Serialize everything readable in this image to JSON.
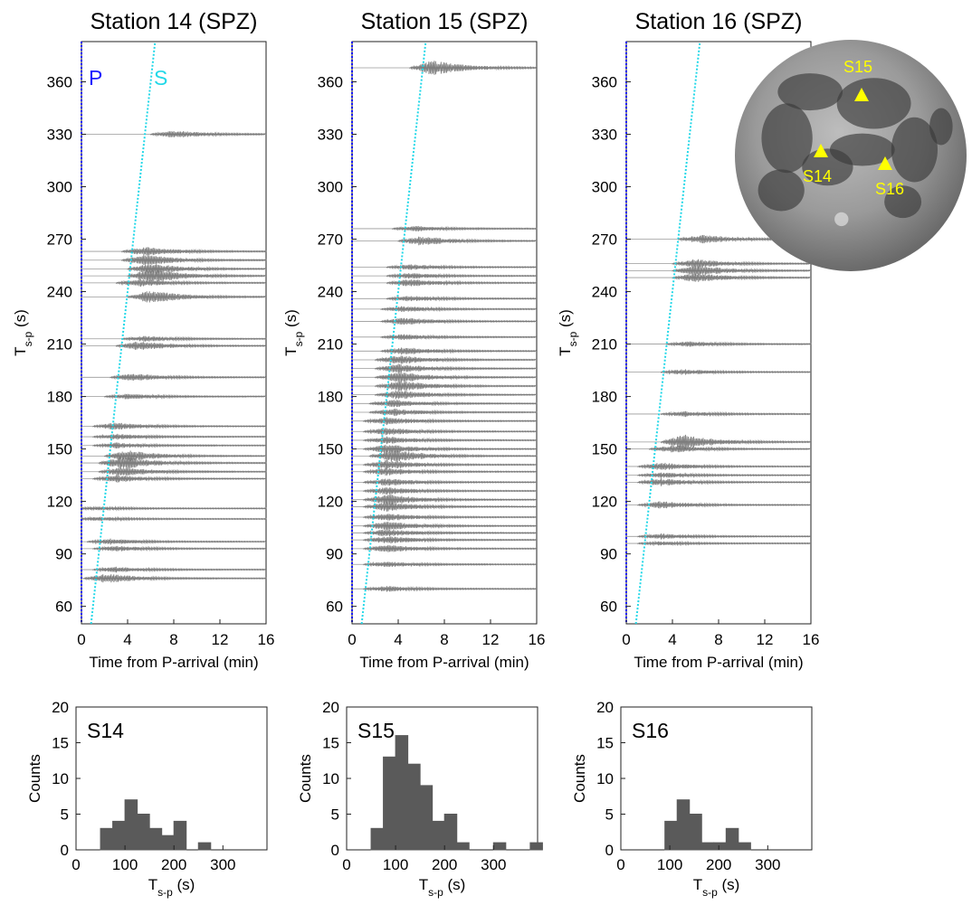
{
  "moon": {
    "labels": [
      {
        "text": "S15",
        "lon": 0.3,
        "lat": 0.48
      },
      {
        "text": "S14",
        "lon": -0.26,
        "lat": 0.09
      },
      {
        "text": "S16",
        "lon": 0.42,
        "lat": 0.02
      }
    ]
  },
  "chart_data": [
    {
      "type": "scatter",
      "title": "Station 14 (SPZ)",
      "xlabel": "Time from P-arrival (min)",
      "ylabel_main": "T",
      "ylabel_sub": "s-p",
      "ylabel_unit": " (s)",
      "xlim": [
        0,
        16
      ],
      "ylim": [
        50,
        383
      ],
      "xticks": [
        0,
        4,
        8,
        12,
        16
      ],
      "yticks": [
        60,
        90,
        120,
        150,
        180,
        210,
        240,
        270,
        300,
        330,
        360
      ],
      "p_label": "P",
      "s_label": "S",
      "p_color": "#1a1aff",
      "s_color": "#22d8e8",
      "traces": [
        {
          "tsp": 76,
          "peak": 2.2,
          "amp": 5
        },
        {
          "tsp": 81,
          "peak": 3.0,
          "amp": 3
        },
        {
          "tsp": 93,
          "peak": 3.0,
          "amp": 3
        },
        {
          "tsp": 97,
          "peak": 2.5,
          "amp": 3
        },
        {
          "tsp": 110,
          "peak": 1.5,
          "amp": 2
        },
        {
          "tsp": 116,
          "peak": 1.5,
          "amp": 2
        },
        {
          "tsp": 133,
          "peak": 3.0,
          "amp": 4
        },
        {
          "tsp": 137,
          "peak": 3.5,
          "amp": 5
        },
        {
          "tsp": 142,
          "peak": 3.5,
          "amp": 7
        },
        {
          "tsp": 146,
          "peak": 4.0,
          "amp": 6
        },
        {
          "tsp": 152,
          "peak": 3.0,
          "amp": 3
        },
        {
          "tsp": 157,
          "peak": 3.0,
          "amp": 3
        },
        {
          "tsp": 163,
          "peak": 3.0,
          "amp": 4
        },
        {
          "tsp": 180,
          "peak": 4.0,
          "amp": 3
        },
        {
          "tsp": 191,
          "peak": 4.5,
          "amp": 4
        },
        {
          "tsp": 209,
          "peak": 5.0,
          "amp": 5
        },
        {
          "tsp": 213,
          "peak": 5.5,
          "amp": 3
        },
        {
          "tsp": 237,
          "peak": 6.0,
          "amp": 7
        },
        {
          "tsp": 245,
          "peak": 5.0,
          "amp": 4
        },
        {
          "tsp": 249,
          "peak": 6.0,
          "amp": 8
        },
        {
          "tsp": 253,
          "peak": 6.0,
          "amp": 6
        },
        {
          "tsp": 258,
          "peak": 5.5,
          "amp": 6
        },
        {
          "tsp": 263,
          "peak": 5.5,
          "amp": 5
        },
        {
          "tsp": 330,
          "peak": 8.0,
          "amp": 4
        }
      ]
    },
    {
      "type": "scatter",
      "title": "Station 15 (SPZ)",
      "xlabel": "Time from P-arrival (min)",
      "ylabel_main": "T",
      "ylabel_sub": "s-p",
      "ylabel_unit": " (s)",
      "xlim": [
        0,
        16
      ],
      "ylim": [
        50,
        383
      ],
      "xticks": [
        0,
        4,
        8,
        12,
        16
      ],
      "yticks": [
        60,
        90,
        120,
        150,
        180,
        210,
        240,
        270,
        300,
        330,
        360
      ],
      "p_color": "#1a1aff",
      "s_color": "#22d8e8",
      "traces": [
        {
          "tsp": 70,
          "peak": 3.0,
          "amp": 3
        },
        {
          "tsp": 84,
          "peak": 3.0,
          "amp": 3
        },
        {
          "tsp": 93,
          "peak": 3.0,
          "amp": 4
        },
        {
          "tsp": 98,
          "peak": 3.0,
          "amp": 4
        },
        {
          "tsp": 102,
          "peak": 3.0,
          "amp": 4
        },
        {
          "tsp": 106,
          "peak": 3.0,
          "amp": 5
        },
        {
          "tsp": 111,
          "peak": 3.0,
          "amp": 4
        },
        {
          "tsp": 117,
          "peak": 3.0,
          "amp": 5
        },
        {
          "tsp": 121,
          "peak": 3.0,
          "amp": 6
        },
        {
          "tsp": 126,
          "peak": 3.0,
          "amp": 4
        },
        {
          "tsp": 131,
          "peak": 3.0,
          "amp": 4
        },
        {
          "tsp": 137,
          "peak": 3.0,
          "amp": 4
        },
        {
          "tsp": 141,
          "peak": 3.0,
          "amp": 5
        },
        {
          "tsp": 146,
          "peak": 3.5,
          "amp": 7
        },
        {
          "tsp": 150,
          "peak": 3.0,
          "amp": 5
        },
        {
          "tsp": 155,
          "peak": 3.0,
          "amp": 4
        },
        {
          "tsp": 160,
          "peak": 3.0,
          "amp": 4
        },
        {
          "tsp": 166,
          "peak": 3.0,
          "amp": 4
        },
        {
          "tsp": 171,
          "peak": 3.5,
          "amp": 4
        },
        {
          "tsp": 176,
          "peak": 3.5,
          "amp": 4
        },
        {
          "tsp": 181,
          "peak": 4.0,
          "amp": 5
        },
        {
          "tsp": 186,
          "peak": 4.0,
          "amp": 6
        },
        {
          "tsp": 191,
          "peak": 4.0,
          "amp": 6
        },
        {
          "tsp": 196,
          "peak": 4.0,
          "amp": 5
        },
        {
          "tsp": 201,
          "peak": 4.0,
          "amp": 5
        },
        {
          "tsp": 206,
          "peak": 4.5,
          "amp": 4
        },
        {
          "tsp": 214,
          "peak": 4.5,
          "amp": 3
        },
        {
          "tsp": 223,
          "peak": 4.5,
          "amp": 4
        },
        {
          "tsp": 230,
          "peak": 4.5,
          "amp": 3
        },
        {
          "tsp": 236,
          "peak": 5.0,
          "amp": 3
        },
        {
          "tsp": 245,
          "peak": 5.0,
          "amp": 4
        },
        {
          "tsp": 249,
          "peak": 5.0,
          "amp": 3
        },
        {
          "tsp": 254,
          "peak": 5.0,
          "amp": 3
        },
        {
          "tsp": 269,
          "peak": 6.0,
          "amp": 5
        },
        {
          "tsp": 276,
          "peak": 5.5,
          "amp": 3
        },
        {
          "tsp": 368,
          "peak": 7.0,
          "amp": 8
        }
      ]
    },
    {
      "type": "scatter",
      "title": "Station 16 (SPZ)",
      "xlabel": "Time from P-arrival (min)",
      "ylabel_main": "T",
      "ylabel_sub": "s-p",
      "ylabel_unit": " (s)",
      "xlim": [
        0,
        16
      ],
      "ylim": [
        50,
        383
      ],
      "xticks": [
        0,
        4,
        8,
        12,
        16
      ],
      "yticks": [
        60,
        90,
        120,
        150,
        180,
        210,
        240,
        270,
        300,
        330,
        360
      ],
      "p_color": "#1a1aff",
      "s_color": "#22d8e8",
      "traces": [
        {
          "tsp": 96,
          "peak": 3.0,
          "amp": 2
        },
        {
          "tsp": 100,
          "peak": 3.0,
          "amp": 3
        },
        {
          "tsp": 118,
          "peak": 3.0,
          "amp": 4
        },
        {
          "tsp": 131,
          "peak": 3.0,
          "amp": 4
        },
        {
          "tsp": 135,
          "peak": 3.0,
          "amp": 3
        },
        {
          "tsp": 140,
          "peak": 3.0,
          "amp": 4
        },
        {
          "tsp": 150,
          "peak": 4.0,
          "amp": 4
        },
        {
          "tsp": 154,
          "peak": 5.0,
          "amp": 8
        },
        {
          "tsp": 170,
          "peak": 5.0,
          "amp": 3
        },
        {
          "tsp": 194,
          "peak": 5.0,
          "amp": 3
        },
        {
          "tsp": 210,
          "peak": 5.5,
          "amp": 3
        },
        {
          "tsp": 248,
          "peak": 6.0,
          "amp": 5
        },
        {
          "tsp": 252,
          "peak": 6.0,
          "amp": 6
        },
        {
          "tsp": 256,
          "peak": 6.0,
          "amp": 5
        },
        {
          "tsp": 270,
          "peak": 6.5,
          "amp": 5
        }
      ]
    },
    {
      "type": "bar",
      "tag": "S14",
      "xlabel_main": "T",
      "xlabel_sub": "s-p",
      "xlabel_unit": " (s)",
      "ylabel": "Counts",
      "xlim": [
        0,
        390
      ],
      "ylim": [
        0,
        20
      ],
      "xticks": [
        0,
        100,
        200,
        300
      ],
      "yticks": [
        0,
        5,
        10,
        15,
        20
      ],
      "bin_width": 25,
      "bin_starts": [
        50,
        75,
        100,
        125,
        150,
        175,
        200,
        225,
        250,
        275,
        300
      ],
      "values": [
        3,
        4,
        7,
        5,
        3,
        2,
        4,
        0,
        1,
        0,
        0
      ],
      "bar_color": "#5a5a5a"
    },
    {
      "type": "bar",
      "tag": "S15",
      "xlabel_main": "T",
      "xlabel_sub": "s-p",
      "xlabel_unit": " (s)",
      "ylabel": "Counts",
      "xlim": [
        0,
        390
      ],
      "ylim": [
        0,
        20
      ],
      "xticks": [
        0,
        100,
        200,
        300
      ],
      "yticks": [
        0,
        5,
        10,
        15,
        20
      ],
      "bin_width": 25,
      "bin_starts": [
        50,
        75,
        100,
        125,
        150,
        175,
        200,
        225,
        250,
        275,
        300,
        325,
        350,
        375
      ],
      "values": [
        3,
        13,
        16,
        12,
        9,
        4,
        5,
        1,
        0,
        0,
        1,
        0,
        0,
        1
      ],
      "bar_color": "#5a5a5a"
    },
    {
      "type": "bar",
      "tag": "S16",
      "xlabel_main": "T",
      "xlabel_sub": "s-p",
      "xlabel_unit": " (s)",
      "ylabel": "Counts",
      "xlim": [
        0,
        390
      ],
      "ylim": [
        0,
        20
      ],
      "xticks": [
        0,
        100,
        200,
        300
      ],
      "yticks": [
        0,
        5,
        10,
        15,
        20
      ],
      "bin_width": 25,
      "bin_starts": [
        90,
        115,
        140,
        165,
        190,
        215,
        240,
        265
      ],
      "values": [
        4,
        7,
        5,
        1,
        1,
        3,
        1,
        0
      ],
      "bar_color": "#5a5a5a"
    }
  ]
}
